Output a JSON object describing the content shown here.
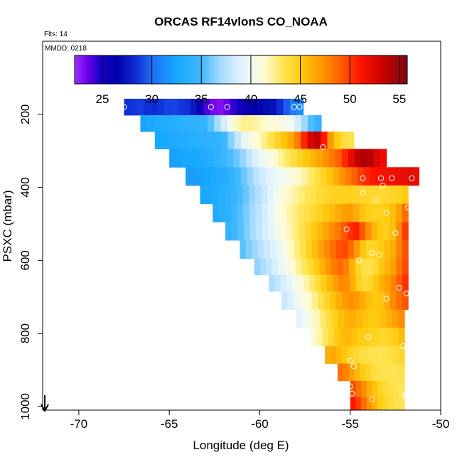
{
  "chart_data": {
    "type": "heatmap",
    "title": "ORCAS RF14vlonS CO_NOAA",
    "subtitle": "Flts: 14",
    "annotation": "MMDD: 0218",
    "xlabel": "Longitude (deg E)",
    "ylabel": "PSXC (mbar)",
    "xlim": [
      -72,
      -50
    ],
    "ylim": [
      1010,
      0
    ],
    "x_ticks": [
      -70,
      -65,
      -60,
      -55,
      -50
    ],
    "y_ticks": [
      200,
      400,
      600,
      800,
      1000
    ],
    "colorbar": {
      "min": 22.2,
      "max": 55.8,
      "ticks": [
        25,
        30,
        35,
        40,
        45,
        50,
        55
      ],
      "stops": [
        {
          "v": 22.2,
          "c": "#9b30ff"
        },
        {
          "v": 23.5,
          "c": "#6a00e8"
        },
        {
          "v": 24.8,
          "c": "#1a00c8"
        },
        {
          "v": 26.5,
          "c": "#0000a8"
        },
        {
          "v": 28.5,
          "c": "#1030d8"
        },
        {
          "v": 30.0,
          "c": "#1e6ef5"
        },
        {
          "v": 32.5,
          "c": "#18a8ff"
        },
        {
          "v": 35.0,
          "c": "#40b8ff"
        },
        {
          "v": 37.0,
          "c": "#a8dcff"
        },
        {
          "v": 39.0,
          "c": "#e2f2ff"
        },
        {
          "v": 40.0,
          "c": "#eefaf2"
        },
        {
          "v": 41.5,
          "c": "#fffad0"
        },
        {
          "v": 43.0,
          "c": "#ffe860"
        },
        {
          "v": 45.0,
          "c": "#ffcc10"
        },
        {
          "v": 47.0,
          "c": "#ff9a00"
        },
        {
          "v": 49.0,
          "c": "#ff6000"
        },
        {
          "v": 51.0,
          "c": "#ff1500"
        },
        {
          "v": 53.5,
          "c": "#c80000"
        },
        {
          "v": 55.8,
          "c": "#7a0a14"
        }
      ]
    },
    "direction_arrow": "down",
    "rows": [
      {
        "p": 180,
        "x0": -67.5,
        "x1": -57.6,
        "vals": [
          28.4,
          28.6,
          28.8,
          28.5,
          28.3,
          28.6,
          28.9,
          29.0,
          28.7,
          28.5,
          27.6,
          25.5,
          24.0,
          23.2,
          23.0,
          23.6,
          24.4,
          25.6,
          26.0,
          26.4,
          26.8,
          27.0,
          27.2,
          28.4,
          29.6,
          30.6,
          31.4
        ]
      },
      {
        "p": 225,
        "x0": -66.6,
        "x1": -56.6,
        "vals": [
          32.3,
          32.6,
          32.9,
          33.1,
          33.3,
          33.5,
          33.7,
          33.9,
          34.1,
          34.4,
          35.5,
          37.0,
          38.5,
          40.5,
          41.8,
          42.4,
          42.3,
          42.0,
          41.6,
          41.2,
          41.0,
          40.5,
          40.0,
          38.5,
          36.8,
          35.2,
          34.4
        ]
      },
      {
        "p": 270,
        "x0": -65.8,
        "x1": -54.8,
        "vals": [
          32.5,
          32.6,
          32.8,
          33.0,
          33.2,
          33.4,
          33.6,
          33.8,
          34.0,
          34.2,
          34.8,
          36.4,
          38.0,
          39.5,
          40.6,
          41.5,
          42.4,
          43.4,
          44.4,
          45.4,
          46.4,
          48.0,
          50.6,
          52.8,
          53.6,
          51.0,
          47.0,
          45.0,
          43.8,
          43.5
        ]
      },
      {
        "p": 320,
        "x0": -65.0,
        "x1": -53.0,
        "vals": [
          32.2,
          32.2,
          32.4,
          32.5,
          32.7,
          33.0,
          33.5,
          34.0,
          34.6,
          35.2,
          35.8,
          36.6,
          37.8,
          38.8,
          39.8,
          40.6,
          41.4,
          42.2,
          43.0,
          43.8,
          44.5,
          45.2,
          45.9,
          46.6,
          47.3,
          48.1,
          49.0,
          50.5,
          52.2,
          53.7,
          54.3,
          53.8,
          52.6,
          51.9
        ]
      },
      {
        "p": 370,
        "x0": -64.1,
        "x1": -51.2,
        "vals": [
          32.0,
          32.0,
          32.2,
          32.4,
          32.7,
          33.0,
          33.5,
          34.2,
          35.0,
          35.8,
          36.6,
          37.6,
          38.4,
          39.0,
          39.5,
          40.0,
          40.5,
          41.0,
          41.6,
          42.2,
          42.9,
          43.7,
          44.5,
          45.3,
          46.2,
          47.2,
          48.1,
          49.0,
          50.0,
          50.6,
          51.0,
          51.2,
          51.4,
          51.6,
          51.8,
          52.0,
          52.2,
          51.9
        ]
      },
      {
        "p": 420,
        "x0": -63.3,
        "x1": -51.8,
        "vals": [
          32.5,
          32.7,
          33.0,
          33.4,
          33.9,
          34.5,
          35.1,
          35.8,
          36.6,
          37.4,
          38.2,
          39.2,
          40.1,
          41.0,
          41.6,
          42.1,
          42.6,
          43.1,
          43.5,
          43.9,
          44.2,
          44.5,
          44.6,
          44.7,
          44.7,
          44.5,
          44.4,
          44.3,
          44.2,
          44.1,
          44.2,
          44.4,
          44.6,
          45.0
        ]
      },
      {
        "p": 470,
        "x0": -62.6,
        "x1": -51.8,
        "vals": [
          33.0,
          33.4,
          33.9,
          34.6,
          35.4,
          36.1,
          36.9,
          37.7,
          38.6,
          39.6,
          40.5,
          41.3,
          42.0,
          42.6,
          43.1,
          43.6,
          44.1,
          44.6,
          45.1,
          45.6,
          46.2,
          46.7,
          46.9,
          46.3,
          45.4,
          44.8,
          44.6,
          44.7,
          45.0,
          45.5,
          46.8,
          48.5
        ]
      },
      {
        "p": 520,
        "x0": -61.9,
        "x1": -51.8,
        "vals": [
          34.2,
          34.8,
          35.4,
          36.2,
          37.0,
          37.8,
          38.6,
          39.4,
          40.2,
          41.0,
          41.8,
          42.6,
          43.4,
          44.2,
          45.0,
          45.8,
          46.6,
          47.4,
          48.2,
          49.3,
          50.3,
          50.8,
          49.2,
          47.3,
          45.8,
          45.0,
          44.8,
          45.6,
          47.5,
          50.0
        ]
      },
      {
        "p": 570,
        "x0": -61.1,
        "x1": -51.8,
        "vals": [
          35.5,
          36.2,
          36.8,
          37.5,
          38.2,
          38.9,
          39.7,
          40.6,
          41.6,
          42.6,
          43.6,
          44.6,
          45.6,
          46.6,
          47.6,
          48.6,
          49.4,
          49.6,
          48.6,
          47.0,
          45.2,
          44.4,
          44.5,
          45.0,
          45.6,
          46.3,
          47.8,
          49.4
        ]
      },
      {
        "p": 620,
        "x0": -60.3,
        "x1": -51.8,
        "vals": [
          36.5,
          37.2,
          37.9,
          38.7,
          39.6,
          40.5,
          41.4,
          42.3,
          43.2,
          44.1,
          45.0,
          46.0,
          47.0,
          48.1,
          48.7,
          47.9,
          46.2,
          44.6,
          43.6,
          43.4,
          44.1,
          45.2,
          46.0,
          46.8,
          48.3,
          49.6
        ]
      },
      {
        "p": 660,
        "x0": -59.5,
        "x1": -51.8,
        "vals": [
          37.2,
          37.9,
          38.6,
          39.4,
          40.2,
          41.1,
          42.0,
          42.9,
          43.9,
          44.9,
          45.9,
          46.8,
          47.6,
          47.4,
          46.1,
          44.7,
          44.0,
          44.3,
          45.2,
          46.2,
          46.9,
          47.8,
          49.2,
          50.3
        ]
      },
      {
        "p": 710,
        "x0": -58.8,
        "x1": -51.8,
        "vals": [
          38.2,
          38.9,
          39.7,
          40.6,
          41.5,
          42.4,
          43.4,
          44.4,
          45.3,
          46.2,
          46.9,
          47.3,
          47.0,
          46.2,
          45.5,
          45.1,
          45.4,
          46.2,
          47.5,
          48.5,
          49.3
        ]
      },
      {
        "p": 760,
        "x0": -58.0,
        "x1": -52.0,
        "vals": [
          39.2,
          40.0,
          40.9,
          41.8,
          42.8,
          43.8,
          44.7,
          45.5,
          46.1,
          46.2,
          45.8,
          45.3,
          45.0,
          45.1,
          45.6,
          46.2,
          46.8,
          47.5
        ]
      },
      {
        "p": 810,
        "x0": -57.2,
        "x1": -52.0,
        "vals": [
          41.0,
          42.0,
          43.0,
          44.0,
          45.0,
          45.6,
          45.8,
          45.4,
          45.0,
          44.8,
          44.6,
          44.4,
          44.3,
          44.5,
          45.0,
          45.6
        ]
      },
      {
        "p": 860,
        "x0": -56.4,
        "x1": -52.0,
        "vals": [
          46.2,
          46.4,
          45.8,
          45.2,
          44.6,
          44.2,
          43.8,
          43.6,
          43.4,
          43.3,
          43.4,
          43.6,
          44.0,
          44.4
        ]
      },
      {
        "p": 905,
        "x0": -55.7,
        "x1": -52.0,
        "vals": [
          48.4,
          47.8,
          46.8,
          45.8,
          45.0,
          44.4,
          43.8,
          43.5,
          43.4,
          43.3,
          43.4,
          43.6
        ]
      },
      {
        "p": 955,
        "x0": -55.0,
        "x1": -52.0,
        "vals": [
          49.6,
          48.6,
          47.4,
          46.3,
          45.4,
          44.6,
          44.0,
          43.6,
          43.4,
          43.3
        ]
      },
      {
        "p": 995,
        "x0": -55.0,
        "x1": -52.0,
        "vals": [
          51.0,
          50.0,
          48.6,
          47.2,
          46.0,
          45.0,
          44.3,
          43.9,
          43.6,
          43.4
        ]
      }
    ],
    "samples": [
      {
        "lon": -67.5,
        "p": 180
      },
      {
        "lon": -62.7,
        "p": 180
      },
      {
        "lon": -61.8,
        "p": 180
      },
      {
        "lon": -58.1,
        "p": 180
      },
      {
        "lon": -57.8,
        "p": 180
      },
      {
        "lon": -56.5,
        "p": 290
      },
      {
        "lon": -54.3,
        "p": 375
      },
      {
        "lon": -53.3,
        "p": 375
      },
      {
        "lon": -52.7,
        "p": 375
      },
      {
        "lon": -51.6,
        "p": 375
      },
      {
        "lon": -53.2,
        "p": 395
      },
      {
        "lon": -54.3,
        "p": 415
      },
      {
        "lon": -53.6,
        "p": 435
      },
      {
        "lon": -51.8,
        "p": 455
      },
      {
        "lon": -53.0,
        "p": 470
      },
      {
        "lon": -55.2,
        "p": 515
      },
      {
        "lon": -52.5,
        "p": 525
      },
      {
        "lon": -53.8,
        "p": 580
      },
      {
        "lon": -53.4,
        "p": 585
      },
      {
        "lon": -54.5,
        "p": 600
      },
      {
        "lon": -52.3,
        "p": 675
      },
      {
        "lon": -53.0,
        "p": 705
      },
      {
        "lon": -51.9,
        "p": 690
      },
      {
        "lon": -54.0,
        "p": 810
      },
      {
        "lon": -52.1,
        "p": 835
      },
      {
        "lon": -55.0,
        "p": 875
      },
      {
        "lon": -54.8,
        "p": 890
      },
      {
        "lon": -55.0,
        "p": 945
      },
      {
        "lon": -54.9,
        "p": 965
      },
      {
        "lon": -53.8,
        "p": 980
      },
      {
        "lon": -52.0,
        "p": 970
      },
      {
        "lon": -51.9,
        "p": 970
      }
    ]
  }
}
